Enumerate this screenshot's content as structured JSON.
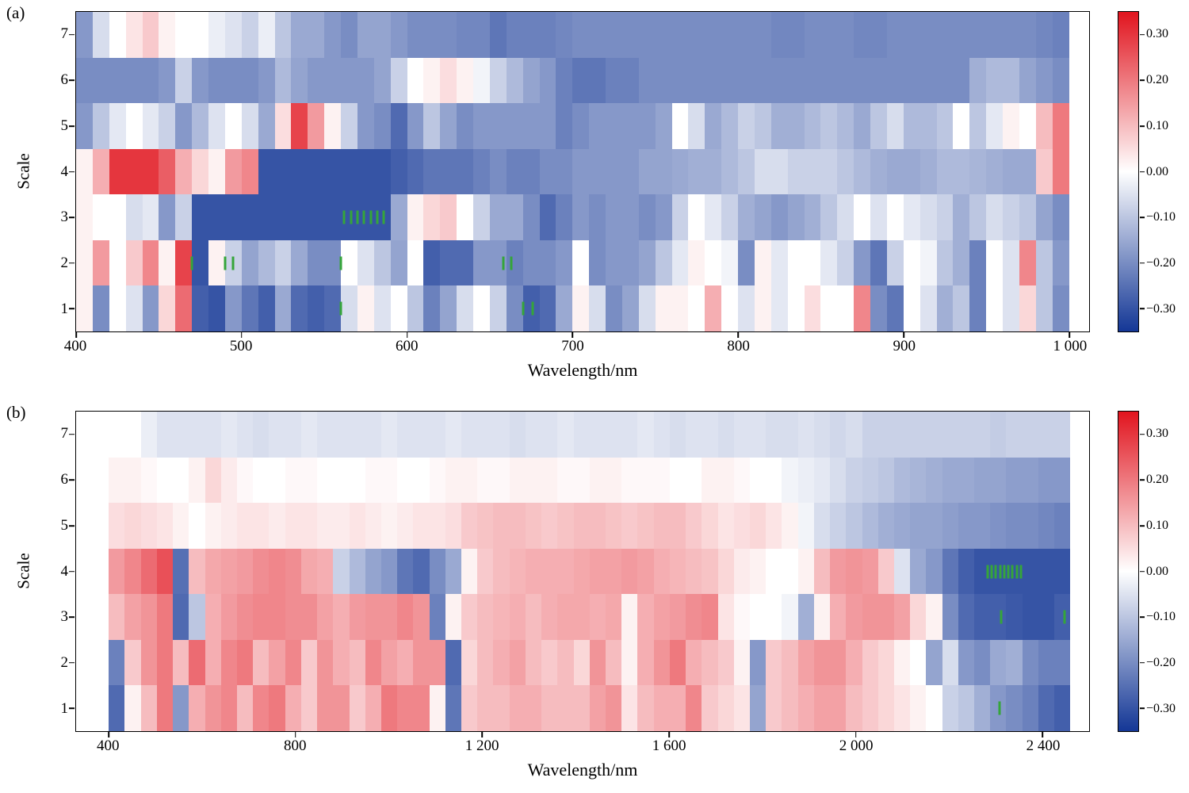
{
  "colorbar": {
    "vmax": 0.35,
    "vmin": -0.35,
    "positive_color": "#e1141e",
    "negative_color": "#143796",
    "ticks": [
      {
        "label": "0.30",
        "value": 0.3
      },
      {
        "label": "0.20",
        "value": 0.2
      },
      {
        "label": "0.10",
        "value": 0.1
      },
      {
        "label": "0.00",
        "value": 0.0
      },
      {
        "label": "−0.10",
        "value": -0.1
      },
      {
        "label": "−0.20",
        "value": -0.2
      },
      {
        "label": "−0.30",
        "value": -0.3
      }
    ]
  },
  "chart_data": [
    {
      "type": "heatmap",
      "panel_label": "(a)",
      "xlabel": "Wavelength/nm",
      "ylabel": "Scale",
      "x_axis_range": [
        400,
        1012
      ],
      "x_bin_start": 400,
      "x_bin_width": 10,
      "x_ticks": [
        400,
        500,
        600,
        700,
        800,
        900,
        1000
      ],
      "x_tick_labels": [
        "400",
        "500",
        "600",
        "700",
        "800",
        "900",
        "1 000"
      ],
      "y_categories": [
        7,
        6,
        5,
        4,
        3,
        2,
        1
      ],
      "marker_color": "#35a53a",
      "values_by_scale_desc": [
        [
          -0.18,
          -0.06,
          0.0,
          0.04,
          0.08,
          0.02,
          0.0,
          0.0,
          -0.03,
          -0.05,
          -0.08,
          -0.03,
          -0.1,
          -0.15,
          -0.15,
          -0.18,
          -0.2,
          -0.16,
          -0.16,
          -0.18,
          -0.2,
          -0.2,
          -0.2,
          -0.21,
          -0.21,
          -0.24,
          -0.22,
          -0.22,
          -0.22,
          -0.21,
          -0.2,
          -0.2,
          -0.2,
          -0.2,
          -0.2,
          -0.2,
          -0.2,
          -0.2,
          -0.2,
          -0.2,
          -0.2,
          -0.2,
          -0.21,
          -0.21,
          -0.2,
          -0.2,
          -0.2,
          -0.21,
          -0.21,
          -0.2,
          -0.2,
          -0.2,
          -0.2,
          -0.2,
          -0.2,
          -0.2,
          -0.2,
          -0.2,
          -0.21,
          -0.22
        ],
        [
          -0.2,
          -0.2,
          -0.2,
          -0.2,
          -0.2,
          -0.18,
          -0.08,
          -0.18,
          -0.2,
          -0.2,
          -0.2,
          -0.18,
          -0.12,
          -0.16,
          -0.18,
          -0.18,
          -0.18,
          -0.18,
          -0.16,
          -0.08,
          0.0,
          0.02,
          0.05,
          0.02,
          -0.02,
          -0.08,
          -0.12,
          -0.16,
          -0.18,
          -0.22,
          -0.24,
          -0.24,
          -0.22,
          -0.22,
          -0.2,
          -0.2,
          -0.2,
          -0.2,
          -0.2,
          -0.2,
          -0.2,
          -0.2,
          -0.2,
          -0.2,
          -0.2,
          -0.2,
          -0.2,
          -0.2,
          -0.2,
          -0.2,
          -0.2,
          -0.2,
          -0.2,
          -0.2,
          -0.14,
          -0.12,
          -0.12,
          -0.16,
          -0.18,
          -0.2
        ],
        [
          -0.18,
          -0.1,
          -0.04,
          0.0,
          -0.04,
          -0.08,
          -0.18,
          -0.12,
          -0.05,
          0.0,
          -0.06,
          -0.15,
          0.05,
          0.28,
          0.15,
          0.02,
          -0.08,
          -0.18,
          -0.2,
          -0.26,
          -0.18,
          -0.1,
          -0.16,
          -0.2,
          -0.18,
          -0.18,
          -0.18,
          -0.18,
          -0.18,
          -0.22,
          -0.2,
          -0.18,
          -0.18,
          -0.18,
          -0.18,
          -0.16,
          0.0,
          -0.06,
          -0.15,
          -0.12,
          -0.08,
          -0.1,
          -0.14,
          -0.14,
          -0.12,
          -0.1,
          -0.12,
          -0.15,
          -0.1,
          -0.06,
          -0.12,
          -0.12,
          -0.1,
          0.0,
          -0.1,
          -0.04,
          0.02,
          0.0,
          0.1,
          0.2
        ],
        [
          0.02,
          0.12,
          0.3,
          0.3,
          0.3,
          0.24,
          0.12,
          0.06,
          0.02,
          0.15,
          0.18,
          -0.3,
          -0.3,
          -0.3,
          -0.3,
          -0.3,
          -0.3,
          -0.3,
          -0.3,
          -0.28,
          -0.26,
          -0.24,
          -0.24,
          -0.24,
          -0.22,
          -0.2,
          -0.22,
          -0.22,
          -0.2,
          -0.2,
          -0.18,
          -0.18,
          -0.18,
          -0.18,
          -0.16,
          -0.16,
          -0.15,
          -0.14,
          -0.14,
          -0.12,
          -0.1,
          -0.06,
          -0.06,
          -0.08,
          -0.08,
          -0.08,
          -0.1,
          -0.12,
          -0.14,
          -0.15,
          -0.15,
          -0.14,
          -0.12,
          -0.12,
          -0.13,
          -0.14,
          -0.15,
          -0.15,
          0.08,
          0.2
        ],
        [
          0.02,
          0.0,
          0.0,
          -0.06,
          -0.04,
          -0.18,
          -0.08,
          -0.3,
          -0.3,
          -0.3,
          -0.3,
          -0.3,
          -0.3,
          -0.3,
          -0.3,
          -0.3,
          -0.3,
          -0.3,
          -0.3,
          -0.15,
          0.02,
          0.06,
          0.08,
          0.0,
          -0.08,
          -0.15,
          -0.15,
          -0.2,
          -0.26,
          -0.22,
          -0.18,
          -0.2,
          -0.18,
          -0.18,
          -0.2,
          -0.18,
          -0.08,
          0.0,
          -0.04,
          -0.08,
          -0.14,
          -0.16,
          -0.18,
          -0.16,
          -0.14,
          -0.1,
          -0.06,
          0.0,
          -0.05,
          0.0,
          -0.04,
          -0.06,
          -0.08,
          -0.14,
          -0.1,
          -0.06,
          -0.08,
          -0.1,
          -0.16,
          -0.2
        ],
        [
          0.02,
          0.15,
          0.0,
          0.08,
          0.18,
          0.02,
          0.28,
          -0.3,
          0.02,
          -0.08,
          -0.16,
          -0.12,
          -0.08,
          -0.15,
          -0.2,
          -0.2,
          0.0,
          -0.05,
          -0.1,
          -0.16,
          0.0,
          -0.28,
          -0.26,
          -0.26,
          -0.18,
          -0.18,
          -0.22,
          -0.2,
          -0.2,
          -0.18,
          0.0,
          -0.2,
          -0.18,
          -0.18,
          -0.16,
          -0.1,
          -0.04,
          0.02,
          0.0,
          -0.02,
          -0.2,
          0.02,
          -0.04,
          0.0,
          0.0,
          -0.04,
          -0.08,
          -0.18,
          -0.24,
          -0.08,
          0.0,
          -0.02,
          -0.1,
          -0.14,
          -0.22,
          0.0,
          -0.05,
          0.18,
          -0.1,
          -0.18
        ],
        [
          0.02,
          -0.2,
          0.0,
          -0.05,
          -0.18,
          0.06,
          0.22,
          -0.28,
          -0.3,
          -0.18,
          -0.24,
          -0.28,
          -0.15,
          -0.26,
          -0.28,
          -0.26,
          -0.06,
          0.02,
          -0.05,
          0.0,
          -0.1,
          -0.22,
          -0.16,
          -0.06,
          0.0,
          -0.08,
          -0.2,
          -0.28,
          -0.26,
          -0.15,
          0.02,
          -0.06,
          -0.2,
          -0.16,
          -0.06,
          0.02,
          0.02,
          0.0,
          0.12,
          0.0,
          -0.05,
          0.02,
          -0.04,
          0.0,
          0.05,
          0.0,
          0.0,
          0.18,
          -0.2,
          -0.24,
          0.0,
          -0.05,
          -0.14,
          -0.1,
          -0.22,
          0.0,
          -0.05,
          0.06,
          -0.1,
          -0.2
        ]
      ],
      "selected_wavelength_markers": [
        {
          "scale": 3,
          "wavelengths": [
            562,
            566,
            570,
            574,
            578,
            582,
            586
          ]
        },
        {
          "scale": 2,
          "wavelengths": [
            470,
            490,
            495,
            560,
            658,
            663
          ]
        },
        {
          "scale": 1,
          "wavelengths": [
            560,
            670,
            676
          ]
        }
      ]
    },
    {
      "type": "heatmap",
      "panel_label": "(b)",
      "xlabel": "Wavelength/nm",
      "ylabel": "Scale",
      "x_axis_range": [
        330,
        2500
      ],
      "x_bin_start": 400,
      "x_bin_width": 34.33,
      "x_ticks": [
        400,
        800,
        1200,
        1600,
        2000,
        2400
      ],
      "x_tick_labels": [
        "400",
        "800",
        "1 200",
        "1 600",
        "2 000",
        "2 400"
      ],
      "y_categories": [
        7,
        6,
        5,
        4,
        3,
        2,
        1
      ],
      "marker_color": "#35a53a",
      "values_by_scale_desc": [
        [
          0.0,
          0.0,
          -0.03,
          -0.05,
          -0.05,
          -0.05,
          -0.05,
          -0.04,
          -0.05,
          -0.06,
          -0.05,
          -0.05,
          -0.04,
          -0.05,
          -0.05,
          -0.05,
          -0.05,
          -0.04,
          -0.05,
          -0.05,
          -0.05,
          -0.04,
          -0.05,
          -0.05,
          -0.05,
          -0.06,
          -0.05,
          -0.05,
          -0.04,
          -0.05,
          -0.05,
          -0.05,
          -0.05,
          -0.04,
          -0.05,
          -0.06,
          -0.05,
          -0.05,
          -0.06,
          -0.05,
          -0.05,
          -0.06,
          -0.06,
          -0.05,
          -0.06,
          -0.07,
          -0.06,
          -0.08,
          -0.08,
          -0.08,
          -0.08,
          -0.08,
          -0.08,
          -0.08,
          -0.08,
          -0.09,
          -0.08,
          -0.08,
          -0.08,
          -0.08
        ],
        [
          0.02,
          0.02,
          0.01,
          0.0,
          0.0,
          0.02,
          0.06,
          0.03,
          0.01,
          0.0,
          0.0,
          0.01,
          0.01,
          0.0,
          0.0,
          0.0,
          0.01,
          0.01,
          0.0,
          0.0,
          0.01,
          0.02,
          0.02,
          0.01,
          0.01,
          0.02,
          0.02,
          0.02,
          0.01,
          0.01,
          0.02,
          0.02,
          0.01,
          0.01,
          0.01,
          0.0,
          0.0,
          0.02,
          0.02,
          0.01,
          0.0,
          0.0,
          -0.02,
          -0.03,
          -0.04,
          -0.06,
          -0.08,
          -0.09,
          -0.1,
          -0.12,
          -0.13,
          -0.14,
          -0.15,
          -0.15,
          -0.16,
          -0.16,
          -0.17,
          -0.17,
          -0.18,
          -0.18
        ],
        [
          0.05,
          0.06,
          0.05,
          0.04,
          0.02,
          0.0,
          0.02,
          0.03,
          0.04,
          0.04,
          0.03,
          0.04,
          0.04,
          0.03,
          0.03,
          0.04,
          0.03,
          0.02,
          0.03,
          0.04,
          0.04,
          0.05,
          0.08,
          0.09,
          0.1,
          0.1,
          0.09,
          0.08,
          0.09,
          0.1,
          0.1,
          0.09,
          0.08,
          0.09,
          0.1,
          0.1,
          0.08,
          0.06,
          0.04,
          0.05,
          0.06,
          0.04,
          0.02,
          -0.02,
          -0.06,
          -0.08,
          -0.1,
          -0.12,
          -0.14,
          -0.15,
          -0.16,
          -0.16,
          -0.17,
          -0.18,
          -0.18,
          -0.19,
          -0.2,
          -0.2,
          -0.21,
          -0.22
        ],
        [
          0.15,
          0.18,
          0.22,
          0.26,
          -0.25,
          0.1,
          0.13,
          0.14,
          0.15,
          0.17,
          0.18,
          0.17,
          0.13,
          0.12,
          -0.08,
          -0.12,
          -0.16,
          -0.18,
          -0.24,
          -0.26,
          -0.2,
          -0.15,
          0.02,
          0.08,
          0.1,
          0.11,
          0.12,
          0.12,
          0.12,
          0.13,
          0.14,
          0.14,
          0.15,
          0.14,
          0.12,
          0.11,
          0.1,
          0.09,
          0.06,
          0.03,
          0.02,
          0.0,
          0.0,
          0.02,
          0.1,
          0.15,
          0.16,
          0.15,
          0.08,
          -0.05,
          -0.15,
          -0.18,
          -0.24,
          -0.28,
          -0.3,
          -0.3,
          -0.3,
          -0.3,
          -0.3,
          -0.3
        ],
        [
          0.1,
          0.14,
          0.16,
          0.2,
          -0.26,
          -0.1,
          0.12,
          0.15,
          0.17,
          0.18,
          0.18,
          0.17,
          0.17,
          0.14,
          0.12,
          0.15,
          0.16,
          0.16,
          0.18,
          0.16,
          -0.22,
          0.02,
          0.08,
          0.1,
          0.11,
          0.12,
          0.1,
          0.12,
          0.13,
          0.13,
          0.12,
          0.13,
          0.02,
          0.12,
          0.14,
          0.15,
          0.17,
          0.18,
          0.04,
          0.01,
          0.0,
          0.0,
          -0.02,
          -0.14,
          0.02,
          0.12,
          0.15,
          0.16,
          0.16,
          0.14,
          0.06,
          0.02,
          -0.2,
          -0.26,
          -0.28,
          -0.28,
          -0.29,
          -0.3,
          -0.3,
          -0.28
        ],
        [
          -0.22,
          0.08,
          0.16,
          0.2,
          0.1,
          0.22,
          0.12,
          0.18,
          0.2,
          0.1,
          0.14,
          0.18,
          0.08,
          0.16,
          0.12,
          0.1,
          0.18,
          0.14,
          0.12,
          0.16,
          0.16,
          -0.26,
          0.06,
          0.1,
          0.12,
          0.14,
          0.1,
          0.08,
          0.1,
          0.06,
          0.16,
          0.1,
          0.02,
          0.12,
          0.16,
          0.2,
          0.12,
          0.1,
          0.08,
          0.02,
          -0.18,
          0.08,
          0.1,
          0.14,
          0.16,
          0.16,
          0.12,
          0.08,
          0.06,
          0.02,
          0.0,
          -0.16,
          -0.06,
          -0.18,
          -0.2,
          -0.15,
          -0.14,
          -0.2,
          -0.22,
          -0.22
        ],
        [
          -0.26,
          0.02,
          0.1,
          0.2,
          -0.18,
          0.12,
          0.16,
          0.18,
          0.1,
          0.18,
          0.2,
          0.12,
          0.08,
          0.16,
          0.16,
          0.08,
          0.12,
          0.2,
          0.18,
          0.18,
          0.02,
          -0.24,
          0.08,
          0.1,
          0.1,
          0.12,
          0.12,
          0.1,
          0.1,
          0.1,
          0.14,
          0.16,
          0.04,
          0.1,
          0.12,
          0.12,
          0.18,
          0.08,
          0.06,
          0.04,
          -0.16,
          0.08,
          0.1,
          0.12,
          0.14,
          0.14,
          0.1,
          0.08,
          0.06,
          0.04,
          0.02,
          0.0,
          -0.08,
          -0.1,
          -0.14,
          -0.18,
          -0.2,
          -0.22,
          -0.26,
          -0.28
        ]
      ],
      "selected_wavelength_markers": [
        {
          "scale": 4,
          "wavelengths": [
            2282,
            2291,
            2300,
            2309,
            2318,
            2327,
            2336,
            2345,
            2354
          ]
        },
        {
          "scale": 3,
          "wavelengths": [
            2312,
            2448
          ]
        },
        {
          "scale": 1,
          "wavelengths": [
            2308
          ]
        }
      ]
    }
  ]
}
